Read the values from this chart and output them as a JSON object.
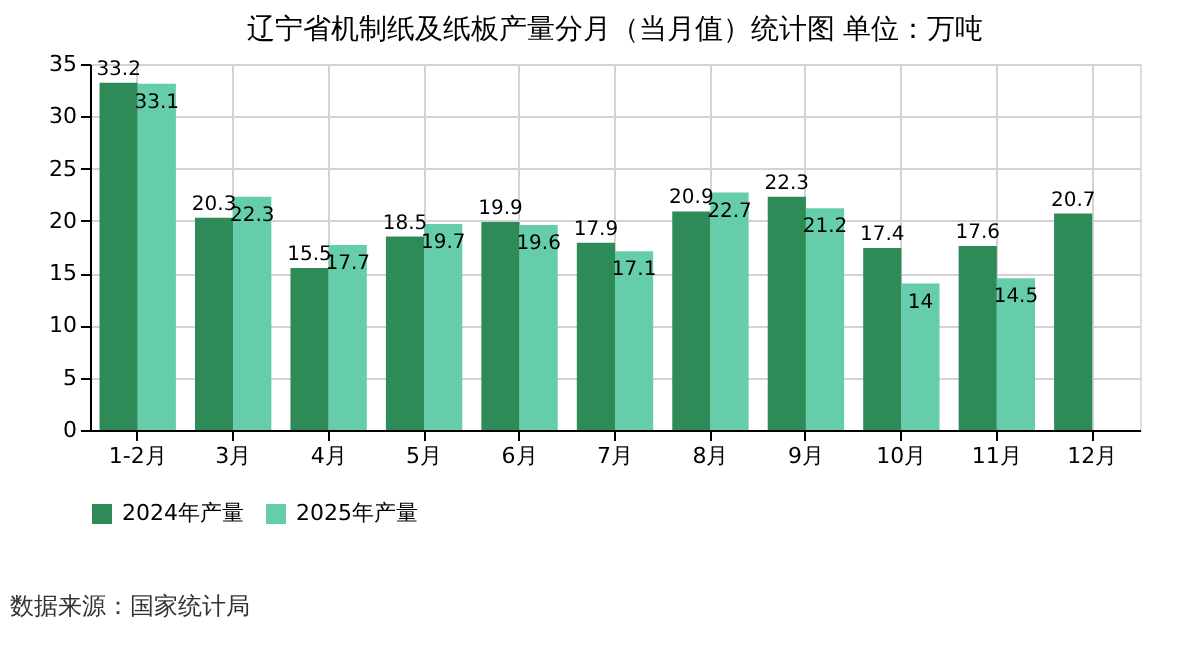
{
  "chart_data": {
    "type": "bar",
    "title": "辽宁省机制纸及纸板产量分月（当月值）统计图 单位：万吨",
    "categories": [
      "1-2月",
      "3月",
      "4月",
      "5月",
      "6月",
      "7月",
      "8月",
      "9月",
      "10月",
      "11月",
      "12月"
    ],
    "series": [
      {
        "name": "2024年产量",
        "color": "#2e8b57",
        "values": [
          33.2,
          20.3,
          15.5,
          18.5,
          19.9,
          17.9,
          20.9,
          22.3,
          17.4,
          17.6,
          20.7
        ]
      },
      {
        "name": "2025年产量",
        "color": "#66cdaa",
        "values": [
          33.1,
          22.3,
          17.7,
          19.7,
          19.6,
          17.1,
          22.7,
          21.2,
          14,
          14.5,
          null
        ]
      }
    ],
    "ylim": [
      0,
      35
    ],
    "yticks": [
      0,
      5,
      10,
      15,
      20,
      25,
      30,
      35
    ],
    "grid": true,
    "legend": "bottom",
    "data_labels": true,
    "annotations": [
      "数据来源：国家统计局"
    ]
  }
}
